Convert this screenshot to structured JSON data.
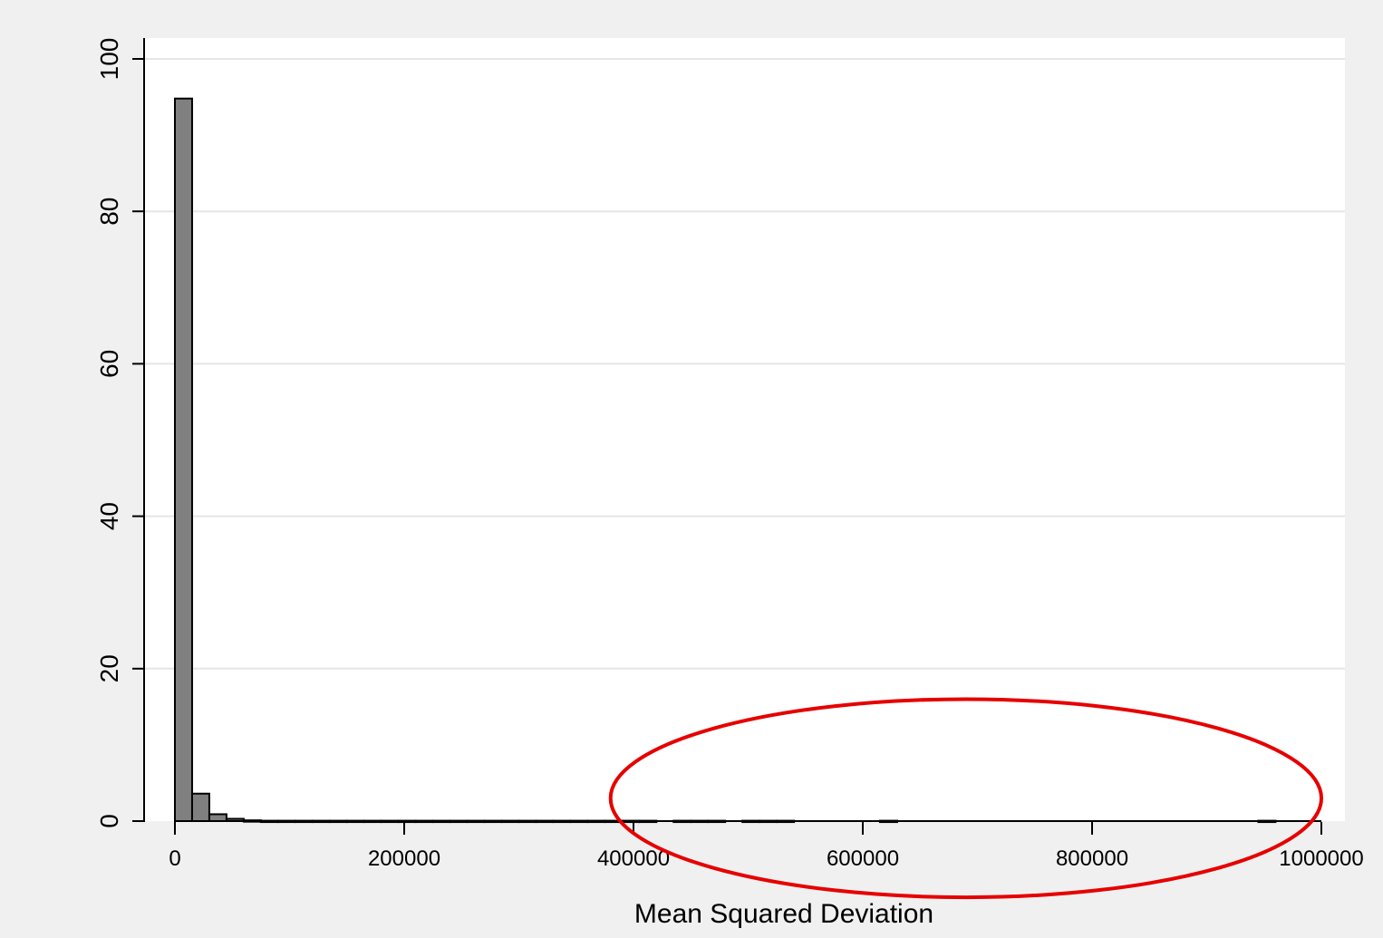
{
  "chart_data": {
    "type": "bar",
    "title": "",
    "xlabel": "Mean Squared Deviation",
    "ylabel": "",
    "xlim": [
      0,
      1000000
    ],
    "ylim": [
      0,
      100
    ],
    "x_ticks": [
      "0",
      "200000",
      "400000",
      "600000",
      "800000",
      "1000000"
    ],
    "y_ticks": [
      "0",
      "20",
      "40",
      "60",
      "80",
      "100"
    ],
    "grid": true,
    "legend": "none",
    "bin_width": 15000,
    "bins": [
      {
        "start": 0,
        "value": 94.8
      },
      {
        "start": 15000,
        "value": 3.6
      },
      {
        "start": 30000,
        "value": 0.9
      },
      {
        "start": 45000,
        "value": 0.3
      },
      {
        "start": 60000,
        "value": 0.1
      },
      {
        "start": 75000,
        "value": 0.05
      },
      {
        "start": 90000,
        "value": 0.05
      },
      {
        "start": 105000,
        "value": 0.05
      },
      {
        "start": 120000,
        "value": 0.05
      },
      {
        "start": 135000,
        "value": 0.05
      },
      {
        "start": 150000,
        "value": 0.05
      },
      {
        "start": 165000,
        "value": 0.05
      },
      {
        "start": 180000,
        "value": 0.05
      },
      {
        "start": 195000,
        "value": 0.05
      },
      {
        "start": 210000,
        "value": 0.05
      },
      {
        "start": 225000,
        "value": 0.05
      },
      {
        "start": 240000,
        "value": 0.05
      },
      {
        "start": 255000,
        "value": 0.05
      },
      {
        "start": 270000,
        "value": 0.05
      },
      {
        "start": 285000,
        "value": 0.05
      },
      {
        "start": 300000,
        "value": 0.05
      },
      {
        "start": 315000,
        "value": 0.05
      },
      {
        "start": 330000,
        "value": 0.05
      },
      {
        "start": 345000,
        "value": 0.05
      },
      {
        "start": 360000,
        "value": 0.05
      },
      {
        "start": 375000,
        "value": 0.05
      },
      {
        "start": 390000,
        "value": 0.05
      },
      {
        "start": 405000,
        "value": 0.05
      },
      {
        "start": 435000,
        "value": 0.05
      },
      {
        "start": 450000,
        "value": 0.05
      },
      {
        "start": 465000,
        "value": 0.05
      },
      {
        "start": 495000,
        "value": 0.05
      },
      {
        "start": 510000,
        "value": 0.05
      },
      {
        "start": 525000,
        "value": 0.05
      },
      {
        "start": 615000,
        "value": 0.05
      },
      {
        "start": 945000,
        "value": 0.05
      }
    ],
    "colors": {
      "bar_fill": "#808080",
      "bar_stroke": "#000000",
      "grid": "#e6e6e6",
      "plot_bg": "#ffffff",
      "page_bg": "#f0f0f0",
      "highlight_ellipse": "#e60000"
    },
    "annotations": [
      {
        "shape": "ellipse",
        "color": "#e60000",
        "x_range": [
          380000,
          1000000
        ],
        "y_range": [
          -10,
          16
        ]
      }
    ]
  }
}
